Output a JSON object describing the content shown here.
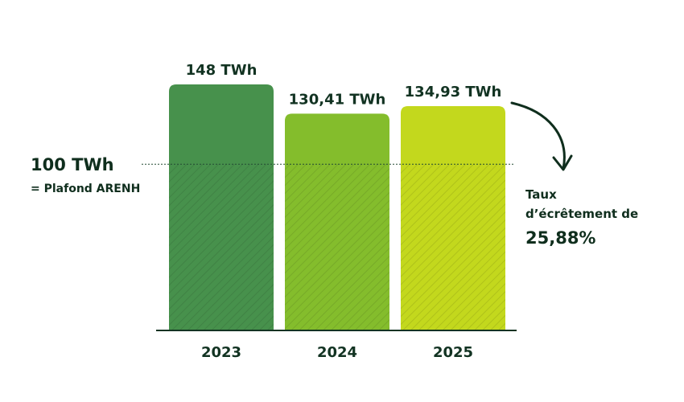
{
  "chart_data": {
    "type": "bar",
    "categories": [
      "2023",
      "2024",
      "2025"
    ],
    "values": [
      148,
      130.41,
      134.93
    ],
    "unit": "TWh",
    "data_labels": [
      "148 TWh",
      "130,41 TWh",
      "134,93 TWh"
    ],
    "colors": [
      "#47914c",
      "#84bd2c",
      "#c3d81d"
    ],
    "ylim": [
      0,
      148
    ],
    "threshold": {
      "value": 100,
      "value_text": "100",
      "unit_text": "TWh",
      "caption": "= Plafond ARENH"
    },
    "annotation": {
      "line1": "Taux",
      "line2": "d’écrêtement de",
      "value": "25,88%"
    }
  }
}
